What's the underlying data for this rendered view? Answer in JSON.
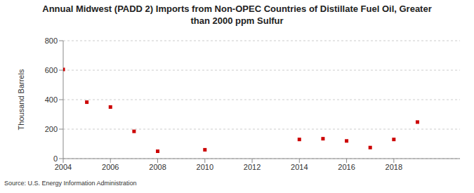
{
  "chart_data": {
    "type": "scatter",
    "title": "Annual Midwest (PADD 2) Imports from Non-OPEC Countries of Distillate Fuel Oil, Greater than 2000 ppm Sulfur",
    "y_label": "Thousand Barrels",
    "source": "Source: U.S. Energy Information Administration",
    "x": [
      2004,
      2005,
      2006,
      2007,
      2008,
      2010,
      2014,
      2015,
      2016,
      2017,
      2018,
      2019
    ],
    "values": [
      605,
      383,
      350,
      185,
      50,
      60,
      130,
      135,
      120,
      75,
      130,
      248
    ],
    "color": "#cc0000",
    "marker": "square",
    "xlim": [
      2004,
      2020.8
    ],
    "xticks": [
      2004,
      2006,
      2008,
      2010,
      2012,
      2014,
      2016,
      2018
    ],
    "ylim": [
      0,
      800
    ],
    "yticks": [
      0,
      200,
      400,
      600,
      800
    ],
    "grid": true
  }
}
